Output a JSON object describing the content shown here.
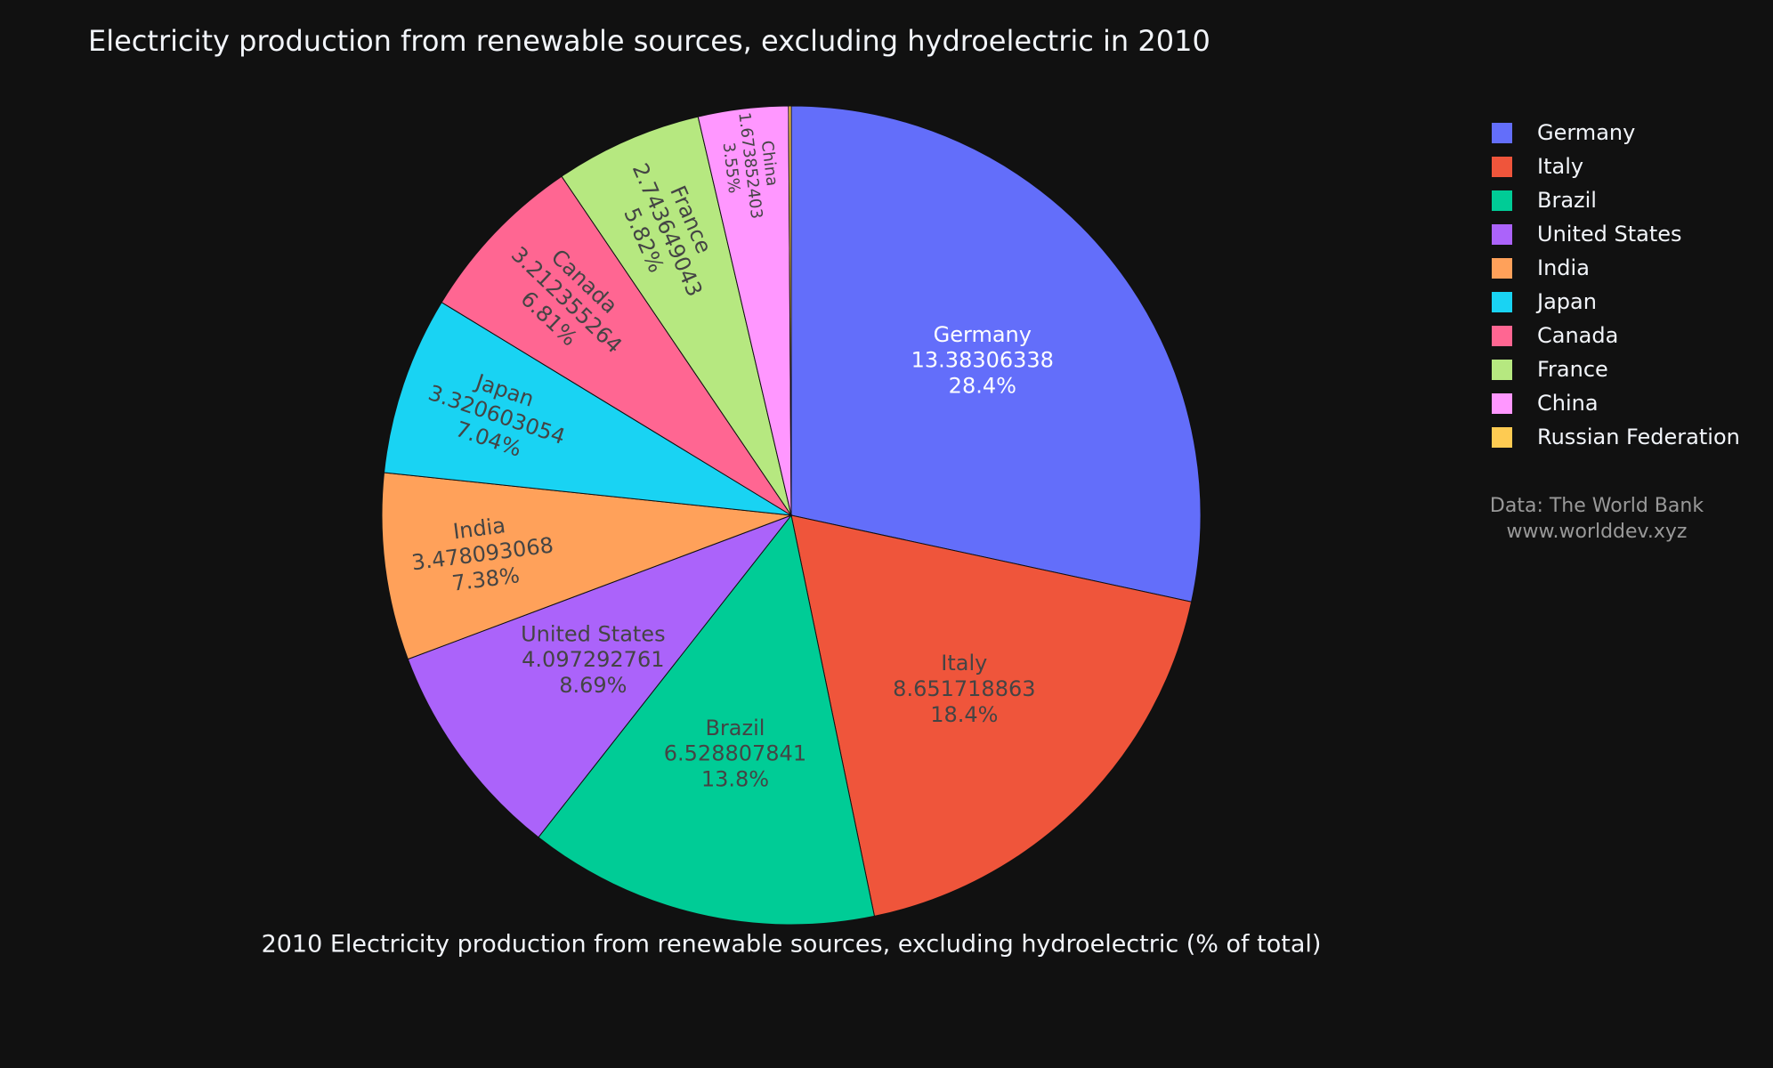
{
  "chart_data": {
    "type": "pie",
    "title": "Electricity production from renewable sources, excluding hydroelectric in 2010",
    "x_label": "2010 Electricity production from renewable sources, excluding hydroelectric (% of total)",
    "annotation": [
      "Data: The World Bank",
      "www.worlddev.xyz"
    ],
    "categories": [
      "Germany",
      "Italy",
      "Brazil",
      "United States",
      "India",
      "Japan",
      "Canada",
      "France",
      "China",
      "Russian Federation"
    ],
    "values": [
      13.38306338,
      8.651718863,
      6.528807841,
      4.097292761,
      3.478093068,
      3.320603054,
      3.212355264,
      2.743649043,
      1.673852403,
      0.05
    ],
    "percent_labels": [
      "28.4%",
      "18.4%",
      "13.8%",
      "8.69%",
      "7.38%",
      "7.04%",
      "6.81%",
      "5.82%",
      "3.55%",
      null
    ],
    "colors": [
      "#636efa",
      "#ef553b",
      "#00cc96",
      "#ab63fa",
      "#ffa15a",
      "#19d3f3",
      "#ff6692",
      "#b6e880",
      "#ff97ff",
      "#fecb52"
    ],
    "legend": "right"
  }
}
